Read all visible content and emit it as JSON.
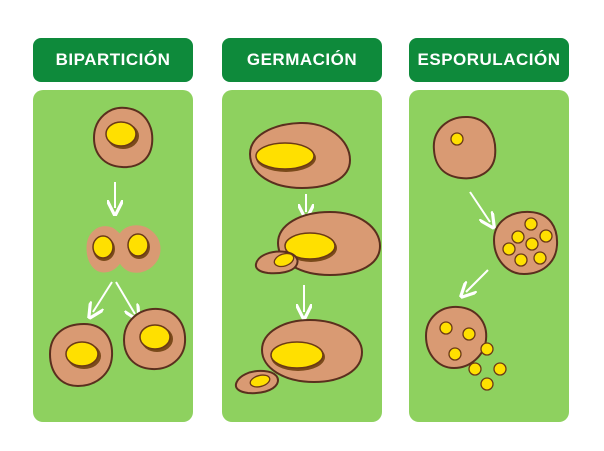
{
  "columns": [
    {
      "title": "BIPARTICIÓN"
    },
    {
      "title": "GERMACIÓN"
    },
    {
      "title": "ESPORULACIÓN"
    }
  ],
  "colors": {
    "header": "#0e8a3b",
    "panel": "#8ed15f",
    "cell": "#d99a73",
    "cell_outline": "#5a2f1e",
    "nucleus": "#ffe000",
    "arrow": "#ffffff"
  }
}
